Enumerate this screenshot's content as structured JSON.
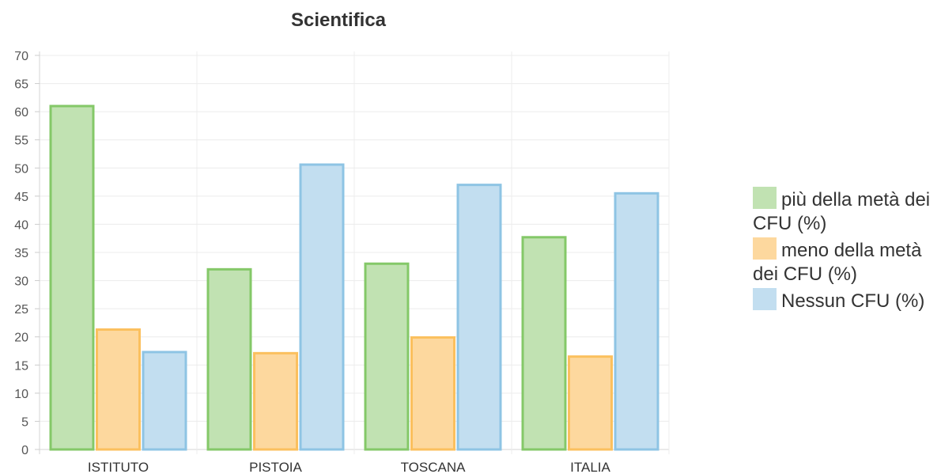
{
  "chart_data": {
    "type": "bar",
    "title": "Scientifica",
    "xlabel": "",
    "ylabel": "",
    "categories": [
      "ISTITUTO",
      "PISTOIA",
      "TOSCANA",
      "ITALIA"
    ],
    "series": [
      {
        "name": "più della metà dei CFU (%)",
        "values": [
          61,
          32,
          33,
          37.7
        ],
        "fill": "#c1e2b2",
        "stroke": "#84c868"
      },
      {
        "name": "meno della metà dei CFU (%)",
        "values": [
          21.3,
          17.1,
          19.9,
          16.5
        ],
        "fill": "#fdd89e",
        "stroke": "#fbc05e"
      },
      {
        "name": "Nessun CFU (%)",
        "values": [
          17.3,
          50.6,
          47,
          45.5
        ],
        "fill": "#c2def0",
        "stroke": "#8ec4e4"
      }
    ],
    "ylim": [
      0,
      70
    ],
    "yticks": [
      0,
      5,
      10,
      15,
      20,
      25,
      30,
      35,
      40,
      45,
      50,
      55,
      60,
      65,
      70
    ],
    "grid": true,
    "legend_position": "right"
  }
}
